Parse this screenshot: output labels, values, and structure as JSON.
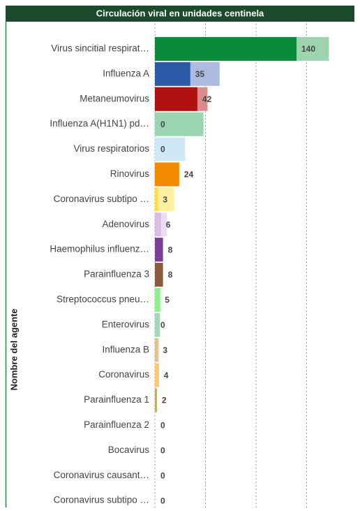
{
  "chart_data": {
    "type": "bar",
    "orientation": "horizontal",
    "title": "Circulación viral en unidades centinela",
    "y_axis_label": "Nombre del agente",
    "categories": [
      "Virus sincitial respirat…",
      "Influenza A",
      "Metaneumovirus",
      "Influenza A(H1N1) pd…",
      "Virus respiratorios",
      "Rinovirus",
      "Coronavirus subtipo …",
      "Adenovirus",
      "Haemophilus influenz…",
      "Parainfluenza 3",
      "Streptococcus pneu…",
      "Enterovirus",
      "Influenza B",
      "Coronavirus",
      "Parainfluenza 1",
      "Parainfluenza 2",
      "Bocavirus",
      "Coronavirus causant…",
      "Coronavirus subtipo …"
    ],
    "series": [
      {
        "values": [
          172,
          64,
          52,
          48,
          30,
          24,
          19,
          12,
          8,
          8,
          6,
          5,
          4,
          4,
          2,
          0,
          0,
          0,
          0
        ],
        "colors": [
          "#9fd3b0",
          "#aebbe0",
          "#d98c8c",
          "#9bd4b0",
          "#cfe8f6",
          "#f5b060",
          "#fff0a0",
          "#ecdcf0",
          "#b58ccc",
          "#b89078",
          "#b8f5b8",
          "#a4d6b8",
          "#ecd6b6",
          "#ffdfa8",
          "#ddd2a6",
          "#dddddd",
          "#dddddd",
          "#dddddd",
          "#dddddd"
        ]
      },
      {
        "values": [
          140,
          35,
          42,
          0,
          0,
          24,
          3,
          6,
          8,
          8,
          5,
          0,
          3,
          4,
          2,
          0,
          0,
          0,
          0
        ],
        "colors": [
          "#0a8a3a",
          "#2f5aa8",
          "#b01212",
          "#52b07a",
          "#88c8ec",
          "#f28a00",
          "#ffdc40",
          "#d9bde0",
          "#7b3f98",
          "#8b5a3c",
          "#90ee90",
          "#6fbf90",
          "#e0bf90",
          "#ffc870",
          "#c0ae66",
          "#bbbbbb",
          "#bbbbbb",
          "#bbbbbb",
          "#bbbbbb"
        ]
      }
    ],
    "label_series": 1,
    "xlim": [
      0,
      200
    ],
    "xticks": [
      0,
      50,
      100,
      150
    ],
    "grid": true
  }
}
